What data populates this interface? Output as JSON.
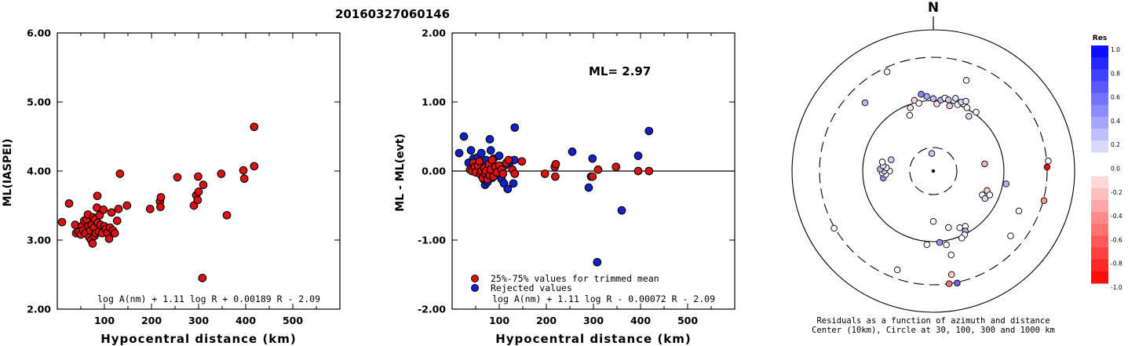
{
  "title": "20160327060146",
  "colors": {
    "accepted": "#dd1111",
    "rejected": "#1122cc",
    "axis": "#000000"
  },
  "chart_data": [
    {
      "type": "scatter",
      "xlabel": "Hypocentral distance (km)",
      "ylabel": "ML(IASPEI)",
      "xlim": [
        0,
        600
      ],
      "ylim": [
        2.0,
        6.0
      ],
      "xticks": [
        "100",
        "200",
        "300",
        "400",
        "500"
      ],
      "yticks": [
        "2.00",
        "3.00",
        "4.00",
        "5.00",
        "6.00"
      ],
      "formula": "log A(nm) + 1.11 log R + 0.00189 R - 2.09",
      "points": [
        [
          10,
          3.26
        ],
        [
          25,
          3.53
        ],
        [
          38,
          3.22
        ],
        [
          40,
          3.1
        ],
        [
          45,
          3.12
        ],
        [
          50,
          3.08
        ],
        [
          52,
          3.2
        ],
        [
          55,
          3.14
        ],
        [
          57,
          3.28
        ],
        [
          60,
          3.1
        ],
        [
          62,
          3.3
        ],
        [
          65,
          3.37
        ],
        [
          66,
          3.2
        ],
        [
          68,
          3.04
        ],
        [
          70,
          3.14
        ],
        [
          72,
          3.0
        ],
        [
          73,
          3.22
        ],
        [
          75,
          2.95
        ],
        [
          76,
          3.33
        ],
        [
          78,
          3.18
        ],
        [
          79,
          3.06
        ],
        [
          80,
          3.3
        ],
        [
          82,
          3.1
        ],
        [
          84,
          3.47
        ],
        [
          85,
          3.64
        ],
        [
          86,
          3.25
        ],
        [
          88,
          3.12
        ],
        [
          90,
          3.36
        ],
        [
          92,
          3.22
        ],
        [
          95,
          3.1
        ],
        [
          98,
          3.44
        ],
        [
          100,
          3.2
        ],
        [
          103,
          3.16
        ],
        [
          106,
          3.1
        ],
        [
          110,
          3.02
        ],
        [
          112,
          3.18
        ],
        [
          115,
          3.4
        ],
        [
          118,
          3.14
        ],
        [
          122,
          3.1
        ],
        [
          127,
          3.28
        ],
        [
          130,
          3.45
        ],
        [
          133,
          3.96
        ],
        [
          148,
          3.5
        ],
        [
          197,
          3.45
        ],
        [
          218,
          3.56
        ],
        [
          219,
          3.48
        ],
        [
          220,
          3.62
        ],
        [
          255,
          3.91
        ],
        [
          290,
          3.5
        ],
        [
          295,
          3.65
        ],
        [
          298,
          3.58
        ],
        [
          299,
          3.92
        ],
        [
          300,
          3.7
        ],
        [
          308,
          2.45
        ],
        [
          310,
          3.8
        ],
        [
          348,
          3.96
        ],
        [
          360,
          3.36
        ],
        [
          395,
          4.01
        ],
        [
          397,
          3.89
        ],
        [
          418,
          4.07
        ],
        [
          418,
          4.64
        ]
      ]
    },
    {
      "type": "scatter",
      "xlabel": "Hypocentral distance (km)",
      "ylabel": "ML - ML(evt)",
      "xlim": [
        0,
        600
      ],
      "ylim": [
        -2.0,
        2.0
      ],
      "xticks": [
        "100",
        "200",
        "300",
        "400",
        "500"
      ],
      "yticks": [
        "-2.00",
        "-1.00",
        "0.00",
        "1.00",
        "2.00"
      ],
      "annotation": "ML= 2.97",
      "legend": [
        "25%-75% values for trimmed mean",
        "Rejected values"
      ],
      "legend_position": "bottom-left",
      "formula": "log A(nm) + 1.11 log R - 0.00072 R - 2.09",
      "accepted": [
        [
          38,
          0.02
        ],
        [
          42,
          0.0
        ],
        [
          45,
          0.12
        ],
        [
          48,
          0.06
        ],
        [
          50,
          -0.02
        ],
        [
          55,
          0.08
        ],
        [
          58,
          0.14
        ],
        [
          60,
          -0.05
        ],
        [
          62,
          0.0
        ],
        [
          65,
          -0.1
        ],
        [
          68,
          0.04
        ],
        [
          70,
          -0.04
        ],
        [
          72,
          0.0
        ],
        [
          75,
          -0.12
        ],
        [
          78,
          0.1
        ],
        [
          80,
          -0.06
        ],
        [
          82,
          0.02
        ],
        [
          85,
          0.16
        ],
        [
          88,
          -0.08
        ],
        [
          92,
          0.06
        ],
        [
          95,
          -0.02
        ],
        [
          100,
          0.08
        ],
        [
          105,
          0.02
        ],
        [
          108,
          -0.04
        ],
        [
          115,
          0.12
        ],
        [
          120,
          0.16
        ],
        [
          128,
          0.02
        ],
        [
          133,
          -0.04
        ],
        [
          148,
          0.14
        ],
        [
          197,
          -0.04
        ],
        [
          218,
          0.06
        ],
        [
          219,
          -0.08
        ],
        [
          220,
          0.1
        ],
        [
          298,
          -0.08
        ],
        [
          310,
          0.02
        ],
        [
          348,
          0.06
        ],
        [
          395,
          0.0
        ],
        [
          418,
          0.0
        ]
      ],
      "rejected": [
        [
          15,
          0.26
        ],
        [
          25,
          0.5
        ],
        [
          35,
          0.12
        ],
        [
          40,
          0.3
        ],
        [
          45,
          0.18
        ],
        [
          50,
          0.04
        ],
        [
          55,
          0.2
        ],
        [
          58,
          0.1
        ],
        [
          62,
          0.26
        ],
        [
          64,
          -0.02
        ],
        [
          67,
          -0.12
        ],
        [
          70,
          -0.2
        ],
        [
          72,
          0.16
        ],
        [
          75,
          -0.16
        ],
        [
          78,
          0.08
        ],
        [
          80,
          0.46
        ],
        [
          82,
          0.3
        ],
        [
          85,
          -0.1
        ],
        [
          88,
          0.18
        ],
        [
          92,
          0.04
        ],
        [
          96,
          -0.06
        ],
        [
          100,
          0.22
        ],
        [
          105,
          -0.12
        ],
        [
          110,
          -0.18
        ],
        [
          112,
          0.08
        ],
        [
          118,
          -0.26
        ],
        [
          122,
          0.12
        ],
        [
          130,
          -0.18
        ],
        [
          132,
          0.16
        ],
        [
          133,
          0.63
        ],
        [
          255,
          0.28
        ],
        [
          290,
          -0.24
        ],
        [
          295,
          -0.08
        ],
        [
          298,
          0.18
        ],
        [
          308,
          -1.32
        ],
        [
          360,
          -0.57
        ],
        [
          395,
          0.22
        ],
        [
          418,
          0.58
        ]
      ]
    }
  ],
  "polar": {
    "north_label": "N",
    "caption_line1": "Residuals as a function of azimuth and distance",
    "caption_line2": "Center (10km), Circle at 30, 100, 300 and 1000 km",
    "colorbar_title": "Res",
    "colorbar_ticks": [
      "1.0",
      "0.8",
      "0.6",
      "0.4",
      "0.2",
      "0.0",
      "-0.2",
      "-0.4",
      "-0.6",
      "-0.8",
      "-1.0"
    ],
    "stations": [
      {
        "az": 351,
        "dist": 133,
        "res": 0.46
      },
      {
        "az": 355,
        "dist": 120,
        "res": 0.35
      },
      {
        "az": 0,
        "dist": 108,
        "res": 0.25
      },
      {
        "az": 3,
        "dist": 95,
        "res": -0.12
      },
      {
        "az": 6,
        "dist": 103,
        "res": 0.3
      },
      {
        "az": 9,
        "dist": 115,
        "res": 0.06
      },
      {
        "az": 12,
        "dist": 110,
        "res": 0.22
      },
      {
        "az": 14,
        "dist": 95,
        "res": -0.2
      },
      {
        "az": 17,
        "dist": 125,
        "res": 0.12
      },
      {
        "az": 20,
        "dist": 100,
        "res": -0.06
      },
      {
        "az": 22,
        "dist": 118,
        "res": 0.18
      },
      {
        "az": 25,
        "dist": 130,
        "res": 0.1
      },
      {
        "az": 345,
        "dist": 112,
        "res": -0.16
      },
      {
        "az": 348,
        "dist": 98,
        "res": 0.04
      },
      {
        "az": 340,
        "dist": 95,
        "res": -0.1
      },
      {
        "az": 337,
        "dist": 85,
        "res": 0.0
      },
      {
        "az": 28,
        "dist": 105,
        "res": -0.04
      },
      {
        "az": 33,
        "dist": 92,
        "res": 0.14
      },
      {
        "az": 36,
        "dist": 110,
        "res": 0.02
      },
      {
        "az": 315,
        "dist": 220,
        "res": 0.26
      },
      {
        "az": 335,
        "dist": 280,
        "res": 0.0
      },
      {
        "az": 20,
        "dist": 220,
        "res": 0.0
      },
      {
        "az": 270,
        "dist": 60,
        "res": 0.0
      },
      {
        "az": 285,
        "dist": 60,
        "res": 0.18
      },
      {
        "az": 355,
        "dist": 25,
        "res": 0.22
      },
      {
        "az": 262,
        "dist": 70,
        "res": 0.4
      },
      {
        "az": 266,
        "dist": 66,
        "res": 0.08
      },
      {
        "az": 268,
        "dist": 71,
        "res": -0.05
      },
      {
        "az": 270,
        "dist": 68,
        "res": 0.2
      },
      {
        "az": 272,
        "dist": 74,
        "res": 0.3
      },
      {
        "az": 274,
        "dist": 65,
        "res": 0.0
      },
      {
        "az": 276,
        "dist": 70,
        "res": 0.12
      },
      {
        "az": 280,
        "dist": 72,
        "res": 0.0
      },
      {
        "az": 82,
        "dist": 72,
        "res": -0.3
      },
      {
        "az": 88,
        "dist": 300,
        "res": -0.98
      },
      {
        "az": 85,
        "dist": 340,
        "res": 0.0
      },
      {
        "az": 100,
        "dist": 115,
        "res": 0.3
      },
      {
        "az": 110,
        "dist": 80,
        "res": -0.2
      },
      {
        "az": 113,
        "dist": 86,
        "res": 0.0
      },
      {
        "az": 116,
        "dist": 76,
        "res": 0.05
      },
      {
        "az": 118,
        "dist": 82,
        "res": 0.15
      },
      {
        "az": 115,
        "dist": 210,
        "res": 0.0
      },
      {
        "az": 105,
        "dist": 320,
        "res": -0.4
      },
      {
        "az": 130,
        "dist": 240,
        "res": 0.0
      },
      {
        "az": 150,
        "dist": 90,
        "res": 0.0
      },
      {
        "az": 152,
        "dist": 96,
        "res": 0.3
      },
      {
        "az": 154,
        "dist": 102,
        "res": 0.05
      },
      {
        "az": 155,
        "dist": 88,
        "res": 0.0
      },
      {
        "az": 157,
        "dist": 110,
        "res": 0.0
      },
      {
        "az": 165,
        "dist": 82,
        "res": 0.0
      },
      {
        "az": 175,
        "dist": 105,
        "res": 0.42
      },
      {
        "az": 180,
        "dist": 70,
        "res": 0.0
      },
      {
        "az": 168,
        "dist": 170,
        "res": 0.0
      },
      {
        "az": 170,
        "dist": 260,
        "res": -0.2
      },
      {
        "az": 172,
        "dist": 300,
        "res": -0.55
      },
      {
        "az": 168,
        "dist": 320,
        "res": 0.6
      },
      {
        "az": 200,
        "dist": 260,
        "res": 0.0
      },
      {
        "az": 240,
        "dist": 320,
        "res": 0.0
      },
      {
        "az": 170,
        "dist": 120,
        "res": 0.0
      },
      {
        "az": 185,
        "dist": 115,
        "res": 0.0
      }
    ]
  }
}
